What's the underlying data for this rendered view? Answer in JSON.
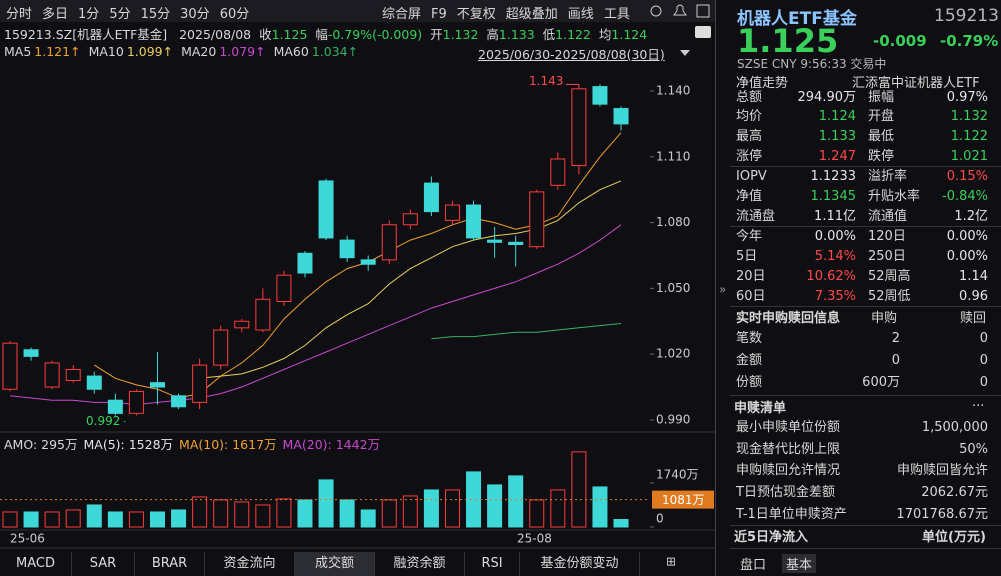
{
  "toolbar": {
    "periods": [
      "分时",
      "多日",
      "1分",
      "5分",
      "15分",
      "30分",
      "60分"
    ],
    "tools": [
      "综合屏",
      "F9",
      "不复权",
      "超级叠加",
      "画线",
      "工具"
    ]
  },
  "info": {
    "symbol": "159213.SZ[机器人ETF基金]",
    "date": "2025/08/08",
    "close_label": "收",
    "close": "1.125",
    "change_label": "幅",
    "change": "-0.79%(-0.009)",
    "open_label": "开",
    "open": "1.132",
    "high_label": "高",
    "high": "1.133",
    "low_label": "低",
    "low": "1.122",
    "avg_label": "均",
    "avg": "1.124"
  },
  "ma_legend": [
    {
      "name": "MA5",
      "value": "1.121↑"
    },
    {
      "name": "MA10",
      "value": "1.099↑"
    },
    {
      "name": "MA20",
      "value": "1.079↑"
    },
    {
      "name": "MA60",
      "value": "1.034↑"
    }
  ],
  "range": "2025/06/30-2025/08/08(30日)",
  "kline": {
    "ylim": [
      0.9845,
      1.1473
    ],
    "yticks": [
      {
        "value": 1.14,
        "label": "1.140"
      },
      {
        "value": 1.11,
        "label": "1.110"
      },
      {
        "value": 1.08,
        "label": "1.080"
      },
      {
        "value": 1.05,
        "label": "1.050"
      },
      {
        "value": 1.02,
        "label": "1.020"
      },
      {
        "value": 0.99,
        "label": "0.990"
      }
    ],
    "up_color": "#ff3b3b",
    "down_color": "#3fd8d8",
    "high_label": {
      "value": 1.143,
      "label": "1.143"
    },
    "low_label": {
      "value": 0.992,
      "label": "0.992"
    },
    "candles": [
      {
        "o": 1.004,
        "h": 1.026,
        "l": 1.003,
        "c": 1.025
      },
      {
        "o": 1.022,
        "h": 1.023,
        "l": 1.017,
        "c": 1.019
      },
      {
        "o": 1.005,
        "h": 1.017,
        "l": 1.004,
        "c": 1.016
      },
      {
        "o": 1.008,
        "h": 1.015,
        "l": 1.007,
        "c": 1.013
      },
      {
        "o": 1.01,
        "h": 1.012,
        "l": 1.002,
        "c": 1.004
      },
      {
        "o": 0.999,
        "h": 1.002,
        "l": 0.992,
        "c": 0.993
      },
      {
        "o": 0.993,
        "h": 1.004,
        "l": 0.992,
        "c": 1.003
      },
      {
        "o": 1.007,
        "h": 1.021,
        "l": 0.997,
        "c": 1.005
      },
      {
        "o": 1.001,
        "h": 1.002,
        "l": 0.995,
        "c": 0.996
      },
      {
        "o": 0.998,
        "h": 1.018,
        "l": 0.995,
        "c": 1.015
      },
      {
        "o": 1.015,
        "h": 1.033,
        "l": 1.013,
        "c": 1.031
      },
      {
        "o": 1.032,
        "h": 1.036,
        "l": 1.03,
        "c": 1.035
      },
      {
        "o": 1.031,
        "h": 1.05,
        "l": 1.03,
        "c": 1.045
      },
      {
        "o": 1.044,
        "h": 1.058,
        "l": 1.042,
        "c": 1.056
      },
      {
        "o": 1.066,
        "h": 1.067,
        "l": 1.055,
        "c": 1.057
      },
      {
        "o": 1.099,
        "h": 1.1,
        "l": 1.072,
        "c": 1.073
      },
      {
        "o": 1.072,
        "h": 1.074,
        "l": 1.062,
        "c": 1.064
      },
      {
        "o": 1.063,
        "h": 1.065,
        "l": 1.058,
        "c": 1.061
      },
      {
        "o": 1.063,
        "h": 1.081,
        "l": 1.061,
        "c": 1.079
      },
      {
        "o": 1.079,
        "h": 1.086,
        "l": 1.077,
        "c": 1.084
      },
      {
        "o": 1.098,
        "h": 1.101,
        "l": 1.083,
        "c": 1.085
      },
      {
        "o": 1.081,
        "h": 1.09,
        "l": 1.079,
        "c": 1.088
      },
      {
        "o": 1.088,
        "h": 1.09,
        "l": 1.072,
        "c": 1.073
      },
      {
        "o": 1.072,
        "h": 1.078,
        "l": 1.064,
        "c": 1.071
      },
      {
        "o": 1.071,
        "h": 1.074,
        "l": 1.06,
        "c": 1.07
      },
      {
        "o": 1.069,
        "h": 1.095,
        "l": 1.068,
        "c": 1.094
      },
      {
        "o": 1.097,
        "h": 1.112,
        "l": 1.095,
        "c": 1.109
      },
      {
        "o": 1.106,
        "h": 1.143,
        "l": 1.102,
        "c": 1.141
      },
      {
        "o": 1.142,
        "h": 1.143,
        "l": 1.133,
        "c": 1.134
      },
      {
        "o": 1.132,
        "h": 1.133,
        "l": 1.122,
        "c": 1.125
      }
    ],
    "ma": [
      {
        "name": "MA5",
        "color": "#f0a030",
        "values": [
          null,
          null,
          null,
          null,
          1.015,
          1.009,
          1.006,
          1.004,
          1.0,
          1.002,
          1.01,
          1.016,
          1.024,
          1.036,
          1.045,
          1.053,
          1.059,
          1.062,
          1.067,
          1.072,
          1.075,
          1.079,
          1.082,
          1.08,
          1.077,
          1.079,
          1.083,
          1.097,
          1.11,
          1.121
        ]
      },
      {
        "name": "MA10",
        "color": "#e8d060",
        "values": [
          null,
          null,
          null,
          null,
          null,
          null,
          null,
          null,
          null,
          1.009,
          1.01,
          1.011,
          1.014,
          1.018,
          1.024,
          1.032,
          1.038,
          1.043,
          1.052,
          1.059,
          1.064,
          1.069,
          1.072,
          1.074,
          1.075,
          1.077,
          1.081,
          1.089,
          1.095,
          1.099
        ]
      },
      {
        "name": "MA20",
        "color": "#c848d0",
        "values": [
          1.001,
          1.0,
          0.999,
          0.999,
          0.998,
          0.998,
          0.997,
          0.998,
          0.999,
          1.0,
          1.002,
          1.005,
          1.009,
          1.013,
          1.017,
          1.021,
          1.025,
          1.029,
          1.033,
          1.037,
          1.041,
          1.044,
          1.047,
          1.05,
          1.053,
          1.057,
          1.061,
          1.066,
          1.072,
          1.079
        ]
      },
      {
        "name": "MA60",
        "color": "#38b060",
        "values": [
          null,
          null,
          null,
          null,
          null,
          null,
          null,
          null,
          null,
          null,
          null,
          null,
          null,
          null,
          null,
          null,
          null,
          null,
          null,
          null,
          1.027,
          1.028,
          1.028,
          1.029,
          1.03,
          1.03,
          1.031,
          1.032,
          1.033,
          1.034
        ]
      }
    ],
    "xlabels": [
      "25-06",
      "25-08"
    ]
  },
  "volume": {
    "title": "AMO: 295万",
    "legend": [
      {
        "label": "MA(5): 1528万",
        "color": "#e6e6e6"
      },
      {
        "label": "MA(10): 1617万",
        "color": "#f0a030"
      },
      {
        "label": "MA(20): 1442万",
        "color": "#c848d0"
      }
    ],
    "values": [
      593,
      593,
      593,
      672,
      870,
      593,
      593,
      593,
      672,
      1186,
      1068,
      989,
      870,
      1107,
      1068,
      1859,
      1068,
      672,
      1068,
      1226,
      1463,
      1463,
      2175,
      1661,
      2017,
      1068,
      1463,
      2966,
      1582,
      295
    ],
    "ylim": [
      0,
      3000
    ],
    "yticks": [
      {
        "value": 1740,
        "label": "1740万"
      },
      0
    ],
    "current": {
      "value": 1081,
      "label": "1081万"
    }
  },
  "quote": {
    "title": "机器人ETF基金",
    "code": "159213",
    "price": "1.125",
    "change": "-0.009",
    "pct": "-0.79%",
    "status": "SZSE  CNY  9:56:33  交易中",
    "tab": "净值走势",
    "fund": "汇添富中证机器人ETF",
    "rows": [
      [
        "总额",
        "294.90万",
        "振幅",
        "0.97%"
      ],
      [
        "均价",
        "1.124",
        "开盘",
        "1.132"
      ],
      [
        "最高",
        "1.133",
        "最低",
        "1.122"
      ],
      [
        "涨停",
        "1.247",
        "跌停",
        "1.021"
      ],
      [
        "IOPV",
        "1.1233",
        "溢折率",
        "0.15%"
      ],
      [
        "净值",
        "1.1345",
        "升贴水率",
        "-0.84%"
      ],
      [
        "流通盘",
        "1.11亿",
        "流通值",
        "1.2亿"
      ],
      [
        "今年",
        "0.00%",
        "120日",
        "0.00%"
      ],
      [
        "5日",
        "5.14%",
        "250日",
        "0.00%"
      ],
      [
        "20日",
        "10.62%",
        "52周高",
        "1.14"
      ],
      [
        "60日",
        "7.35%",
        "52周低",
        "0.96"
      ]
    ]
  },
  "subscription": {
    "title": "实时申购赎回信息",
    "headers": [
      "申购",
      "赎回"
    ],
    "rows": [
      [
        "笔数",
        "2",
        "0"
      ],
      [
        "金额",
        "0",
        "0"
      ],
      [
        "份额",
        "600万",
        "0"
      ]
    ]
  },
  "list": {
    "title": "申赎清单",
    "more": "...",
    "rows": [
      [
        "最小申赎单位份额",
        "1,500,000"
      ],
      [
        "现金替代比例上限",
        "50%"
      ],
      [
        "申购赎回允许情况",
        "申购赎回皆允许"
      ],
      [
        "T日预估现金差额",
        "2062.67元"
      ],
      [
        "T-1日单位申赎资产",
        "1701768.67元"
      ]
    ]
  },
  "flow": {
    "title": "近5日净流入",
    "unit": "单位(万元)"
  },
  "bottom_tabs": [
    "MACD",
    "SAR",
    "BRAR",
    "资金流向",
    "成交额",
    "融资余额",
    "RSI",
    "基金份额变动"
  ],
  "panel_tabs": [
    "盘口",
    "基本"
  ]
}
